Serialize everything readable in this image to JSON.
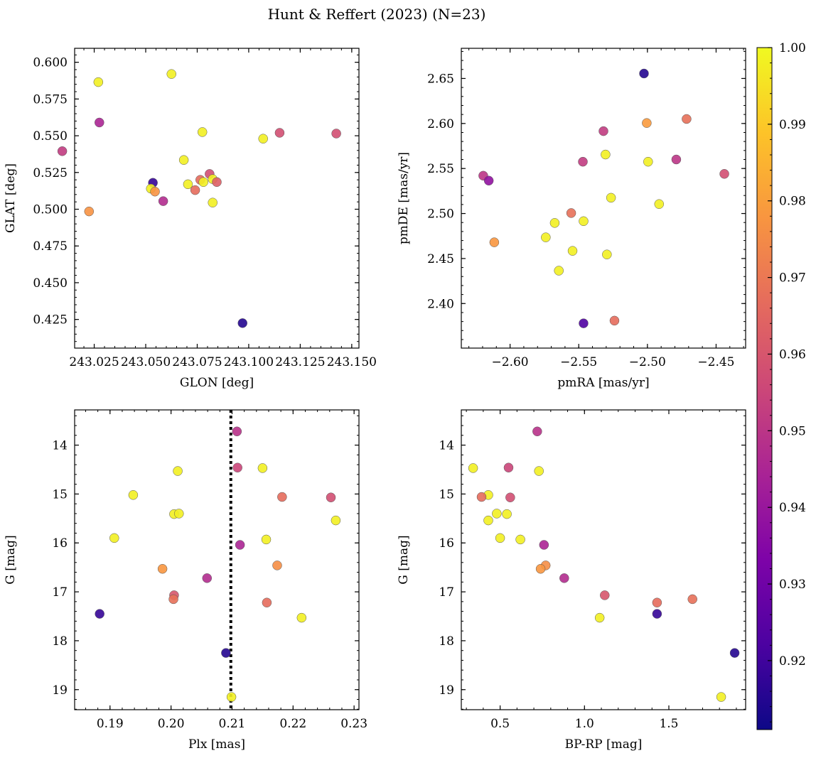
{
  "title": "Hunt & Reffert (2023) (N=23)",
  "colorbar": {
    "range": [
      0.911,
      1.0
    ],
    "ticks": [
      "0.92",
      "0.93",
      "0.94",
      "0.95",
      "0.96",
      "0.97",
      "0.98",
      "0.99",
      "1.00"
    ],
    "tick_values": [
      0.92,
      0.93,
      0.94,
      0.95,
      0.96,
      0.97,
      0.98,
      0.99,
      1.0
    ],
    "colormap": "plasma"
  },
  "chart_data": [
    {
      "type": "scatter",
      "id": "glon-glat",
      "xlabel": "GLON [deg]",
      "ylabel": "GLAT [deg]",
      "xlim": [
        243.0155,
        243.1535
      ],
      "ylim": [
        0.4055,
        0.6095
      ],
      "x_ticks": [
        243.025,
        243.05,
        243.075,
        243.1,
        243.125,
        243.15
      ],
      "x_tick_labels": [
        "243.025",
        "243.050",
        "243.075",
        "243.100",
        "243.125",
        "243.150"
      ],
      "y_ticks": [
        0.425,
        0.45,
        0.475,
        0.5,
        0.525,
        0.55,
        0.575,
        0.6
      ],
      "y_tick_labels": [
        "0.425",
        "0.450",
        "0.475",
        "0.500",
        "0.525",
        "0.550",
        "0.575",
        "0.600"
      ],
      "points": [
        {
          "x": 243.027,
          "y": 0.5865,
          "c": 0.998
        },
        {
          "x": 243.0625,
          "y": 0.592,
          "c": 0.998
        },
        {
          "x": 243.0275,
          "y": 0.559,
          "c": 0.945
        },
        {
          "x": 243.0095,
          "y": 0.5395,
          "c": 0.952
        },
        {
          "x": 243.0775,
          "y": 0.5525,
          "c": 0.998
        },
        {
          "x": 243.107,
          "y": 0.548,
          "c": 0.998
        },
        {
          "x": 243.115,
          "y": 0.552,
          "c": 0.958
        },
        {
          "x": 243.1425,
          "y": 0.5515,
          "c": 0.958
        },
        {
          "x": 243.0685,
          "y": 0.5335,
          "c": 0.998
        },
        {
          "x": 243.0535,
          "y": 0.518,
          "c": 0.918
        },
        {
          "x": 243.0525,
          "y": 0.514,
          "c": 0.998
        },
        {
          "x": 243.0545,
          "y": 0.512,
          "c": 0.977
        },
        {
          "x": 243.0705,
          "y": 0.517,
          "c": 0.998
        },
        {
          "x": 243.074,
          "y": 0.513,
          "c": 0.967
        },
        {
          "x": 243.0765,
          "y": 0.52,
          "c": 0.967
        },
        {
          "x": 243.078,
          "y": 0.5185,
          "c": 0.998
        },
        {
          "x": 243.081,
          "y": 0.524,
          "c": 0.958
        },
        {
          "x": 243.0825,
          "y": 0.5205,
          "c": 0.998
        },
        {
          "x": 243.0845,
          "y": 0.5185,
          "c": 0.963
        },
        {
          "x": 243.0825,
          "y": 0.5045,
          "c": 0.998
        },
        {
          "x": 243.0585,
          "y": 0.5055,
          "c": 0.947
        },
        {
          "x": 243.0225,
          "y": 0.4985,
          "c": 0.977
        },
        {
          "x": 243.097,
          "y": 0.4225,
          "c": 0.915
        }
      ]
    },
    {
      "type": "scatter",
      "id": "pmra-pmde",
      "xlabel": "pmRA [mas/yr]",
      "ylabel": "pmDE [mas/yr]",
      "xlim": [
        -2.6355,
        -2.4285
      ],
      "ylim": [
        2.3505,
        2.6835
      ],
      "x_ticks": [
        -2.6,
        -2.55,
        -2.5,
        -2.45
      ],
      "x_tick_labels": [
        "−2.60",
        "−2.55",
        "−2.50",
        "−2.45"
      ],
      "y_ticks": [
        2.4,
        2.45,
        2.5,
        2.55,
        2.6,
        2.65
      ],
      "y_tick_labels": [
        "2.40",
        "2.45",
        "2.50",
        "2.55",
        "2.60",
        "2.65"
      ],
      "points": [
        {
          "x": -2.5025,
          "y": 2.6555,
          "c": 0.915
        },
        {
          "x": -2.532,
          "y": 2.5915,
          "c": 0.952
        },
        {
          "x": -2.5005,
          "y": 2.6005,
          "c": 0.979
        },
        {
          "x": -2.4715,
          "y": 2.605,
          "c": 0.968
        },
        {
          "x": -2.5305,
          "y": 2.5655,
          "c": 0.998
        },
        {
          "x": -2.547,
          "y": 2.5575,
          "c": 0.952
        },
        {
          "x": -2.4995,
          "y": 2.5575,
          "c": 0.998
        },
        {
          "x": -2.479,
          "y": 2.56,
          "c": 0.95
        },
        {
          "x": -2.6195,
          "y": 2.542,
          "c": 0.95
        },
        {
          "x": -2.6155,
          "y": 2.5365,
          "c": 0.938
        },
        {
          "x": -2.444,
          "y": 2.544,
          "c": 0.958
        },
        {
          "x": -2.5265,
          "y": 2.5175,
          "c": 0.998
        },
        {
          "x": -2.4915,
          "y": 2.5105,
          "c": 0.998
        },
        {
          "x": -2.5555,
          "y": 2.5005,
          "c": 0.968
        },
        {
          "x": -2.5675,
          "y": 2.4895,
          "c": 0.998
        },
        {
          "x": -2.5465,
          "y": 2.4915,
          "c": 0.998
        },
        {
          "x": -2.574,
          "y": 2.4735,
          "c": 0.998
        },
        {
          "x": -2.6115,
          "y": 2.468,
          "c": 0.978
        },
        {
          "x": -2.5545,
          "y": 2.4585,
          "c": 0.998
        },
        {
          "x": -2.5295,
          "y": 2.4545,
          "c": 0.998
        },
        {
          "x": -2.5645,
          "y": 2.4365,
          "c": 0.998
        },
        {
          "x": -2.524,
          "y": 2.381,
          "c": 0.967
        },
        {
          "x": -2.5465,
          "y": 2.378,
          "c": 0.923
        }
      ]
    },
    {
      "type": "scatter",
      "id": "plx-g",
      "xlabel": "Plx [mas]",
      "ylabel": "G [mag]",
      "xlim": [
        0.1842,
        0.2308
      ],
      "ylim": [
        19.41,
        13.28
      ],
      "y_inverted": true,
      "x_ticks": [
        0.19,
        0.2,
        0.21,
        0.22,
        0.23
      ],
      "x_tick_labels": [
        "0.19",
        "0.20",
        "0.21",
        "0.22",
        "0.23"
      ],
      "y_ticks": [
        14,
        15,
        16,
        17,
        18,
        19
      ],
      "y_tick_labels": [
        "14",
        "15",
        "16",
        "17",
        "18",
        "19"
      ],
      "reference_line": {
        "x": 0.2098,
        "style": "dotted",
        "color": "#000000"
      },
      "points": [
        {
          "x": 0.2108,
          "y": 13.72,
          "c": 0.949
        },
        {
          "x": 0.2011,
          "y": 14.53,
          "c": 0.998
        },
        {
          "x": 0.215,
          "y": 14.47,
          "c": 0.998
        },
        {
          "x": 0.2109,
          "y": 14.46,
          "c": 0.955
        },
        {
          "x": 0.1938,
          "y": 15.02,
          "c": 0.998
        },
        {
          "x": 0.2182,
          "y": 15.06,
          "c": 0.967
        },
        {
          "x": 0.2262,
          "y": 15.07,
          "c": 0.958
        },
        {
          "x": 0.2005,
          "y": 15.41,
          "c": 0.998
        },
        {
          "x": 0.2013,
          "y": 15.4,
          "c": 0.998
        },
        {
          "x": 0.227,
          "y": 15.54,
          "c": 0.998
        },
        {
          "x": 0.1907,
          "y": 15.9,
          "c": 0.998
        },
        {
          "x": 0.2156,
          "y": 15.93,
          "c": 0.998
        },
        {
          "x": 0.2113,
          "y": 16.04,
          "c": 0.945
        },
        {
          "x": 0.2174,
          "y": 16.46,
          "c": 0.976
        },
        {
          "x": 0.1986,
          "y": 16.53,
          "c": 0.978
        },
        {
          "x": 0.2059,
          "y": 16.72,
          "c": 0.947
        },
        {
          "x": 0.2005,
          "y": 17.07,
          "c": 0.96
        },
        {
          "x": 0.2004,
          "y": 17.15,
          "c": 0.968
        },
        {
          "x": 0.2157,
          "y": 17.22,
          "c": 0.967
        },
        {
          "x": 0.1883,
          "y": 17.45,
          "c": 0.918
        },
        {
          "x": 0.2214,
          "y": 17.53,
          "c": 0.998
        },
        {
          "x": 0.209,
          "y": 18.25,
          "c": 0.915
        },
        {
          "x": 0.2099,
          "y": 19.15,
          "c": 0.998
        }
      ]
    },
    {
      "type": "scatter",
      "id": "bprp-g",
      "xlabel": "BP-RP [mag]",
      "ylabel": "G [mag]",
      "xlim": [
        0.27,
        1.955
      ],
      "ylim": [
        19.41,
        13.28
      ],
      "y_inverted": true,
      "x_ticks": [
        0.5,
        1.0,
        1.5
      ],
      "x_tick_labels": [
        "0.5",
        "1.0",
        "1.5"
      ],
      "y_ticks": [
        14,
        15,
        16,
        17,
        18,
        19
      ],
      "y_tick_labels": [
        "14",
        "15",
        "16",
        "17",
        "18",
        "19"
      ],
      "points": [
        {
          "x": 0.72,
          "y": 13.72,
          "c": 0.949
        },
        {
          "x": 0.34,
          "y": 14.47,
          "c": 0.998
        },
        {
          "x": 0.55,
          "y": 14.46,
          "c": 0.955
        },
        {
          "x": 0.73,
          "y": 14.53,
          "c": 0.998
        },
        {
          "x": 0.43,
          "y": 15.02,
          "c": 0.998
        },
        {
          "x": 0.39,
          "y": 15.06,
          "c": 0.967
        },
        {
          "x": 0.56,
          "y": 15.07,
          "c": 0.958
        },
        {
          "x": 0.48,
          "y": 15.4,
          "c": 0.998
        },
        {
          "x": 0.54,
          "y": 15.41,
          "c": 0.998
        },
        {
          "x": 0.43,
          "y": 15.54,
          "c": 0.998
        },
        {
          "x": 0.5,
          "y": 15.9,
          "c": 0.998
        },
        {
          "x": 0.62,
          "y": 15.93,
          "c": 0.998
        },
        {
          "x": 0.76,
          "y": 16.04,
          "c": 0.945
        },
        {
          "x": 0.77,
          "y": 16.46,
          "c": 0.976
        },
        {
          "x": 0.74,
          "y": 16.53,
          "c": 0.978
        },
        {
          "x": 0.88,
          "y": 16.72,
          "c": 0.947
        },
        {
          "x": 1.12,
          "y": 17.07,
          "c": 0.96
        },
        {
          "x": 1.64,
          "y": 17.15,
          "c": 0.968
        },
        {
          "x": 1.43,
          "y": 17.22,
          "c": 0.967
        },
        {
          "x": 1.43,
          "y": 17.45,
          "c": 0.918
        },
        {
          "x": 1.09,
          "y": 17.53,
          "c": 0.998
        },
        {
          "x": 1.89,
          "y": 18.25,
          "c": 0.915
        },
        {
          "x": 1.81,
          "y": 19.15,
          "c": 0.998
        }
      ]
    }
  ]
}
